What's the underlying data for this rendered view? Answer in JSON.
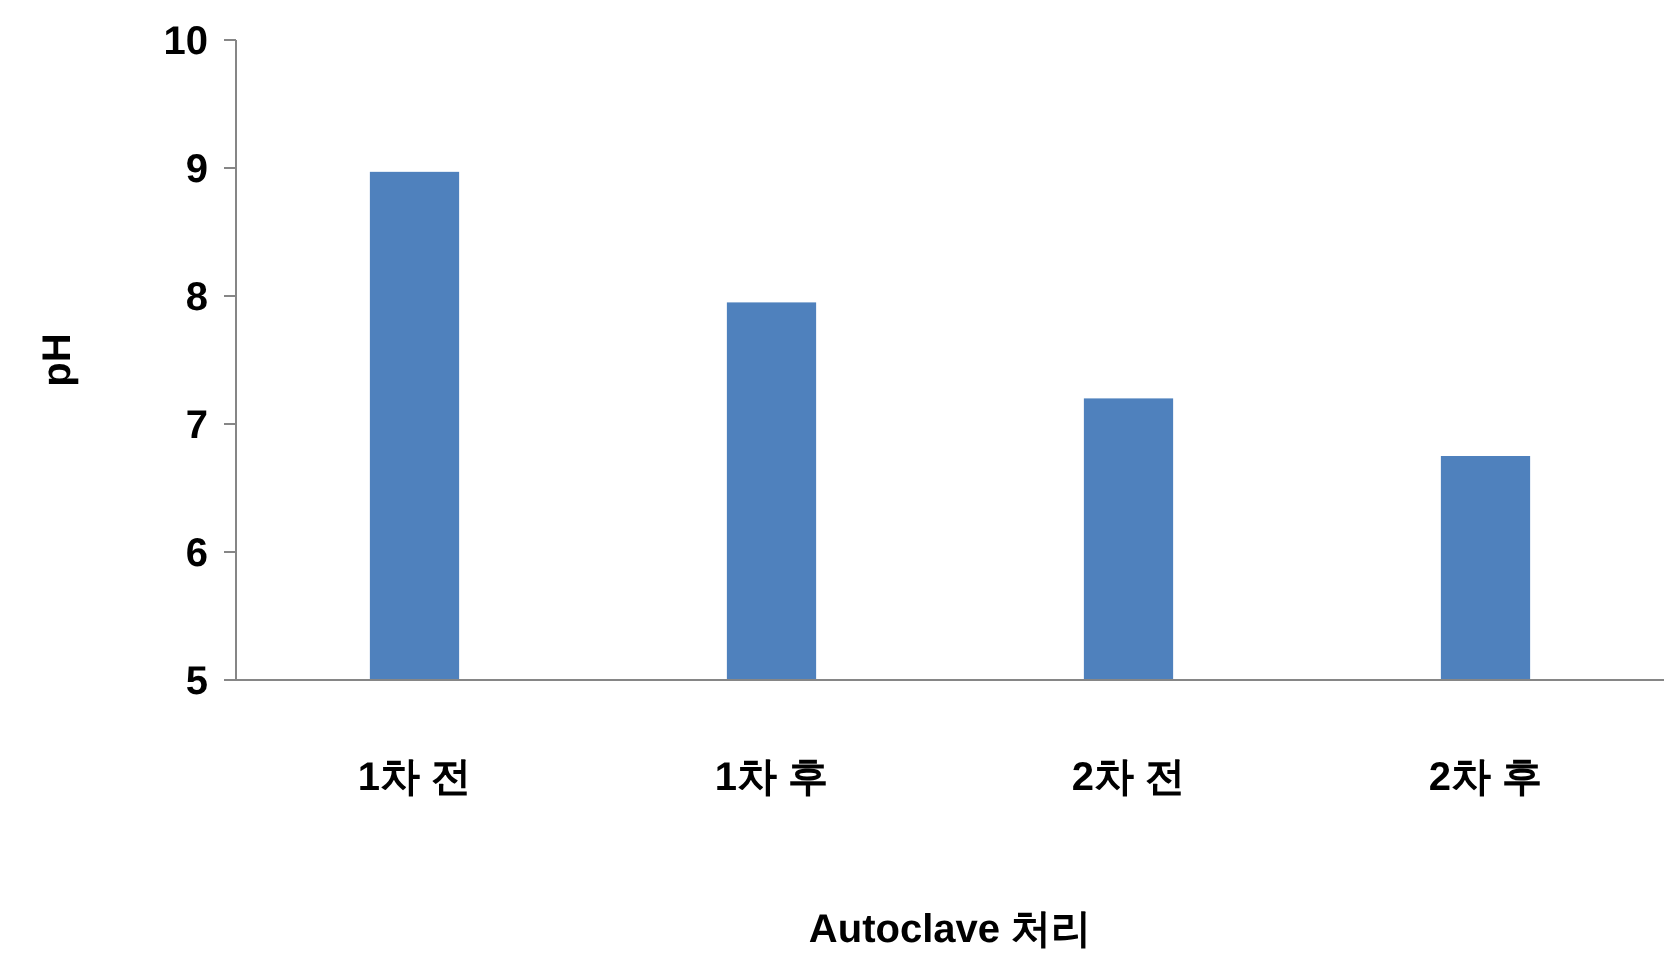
{
  "chart_data": {
    "type": "bar",
    "xlabel": "Autoclave 처리",
    "ylabel": "pH",
    "categories": [
      "1차 전",
      "1차 후",
      "2차 전",
      "2차 후"
    ],
    "values": [
      8.97,
      7.95,
      7.2,
      6.75
    ],
    "color": "#4f81bd",
    "ylim": [
      5,
      10
    ],
    "yticks": [
      5,
      6,
      7,
      8,
      9,
      10
    ],
    "grid": false
  }
}
